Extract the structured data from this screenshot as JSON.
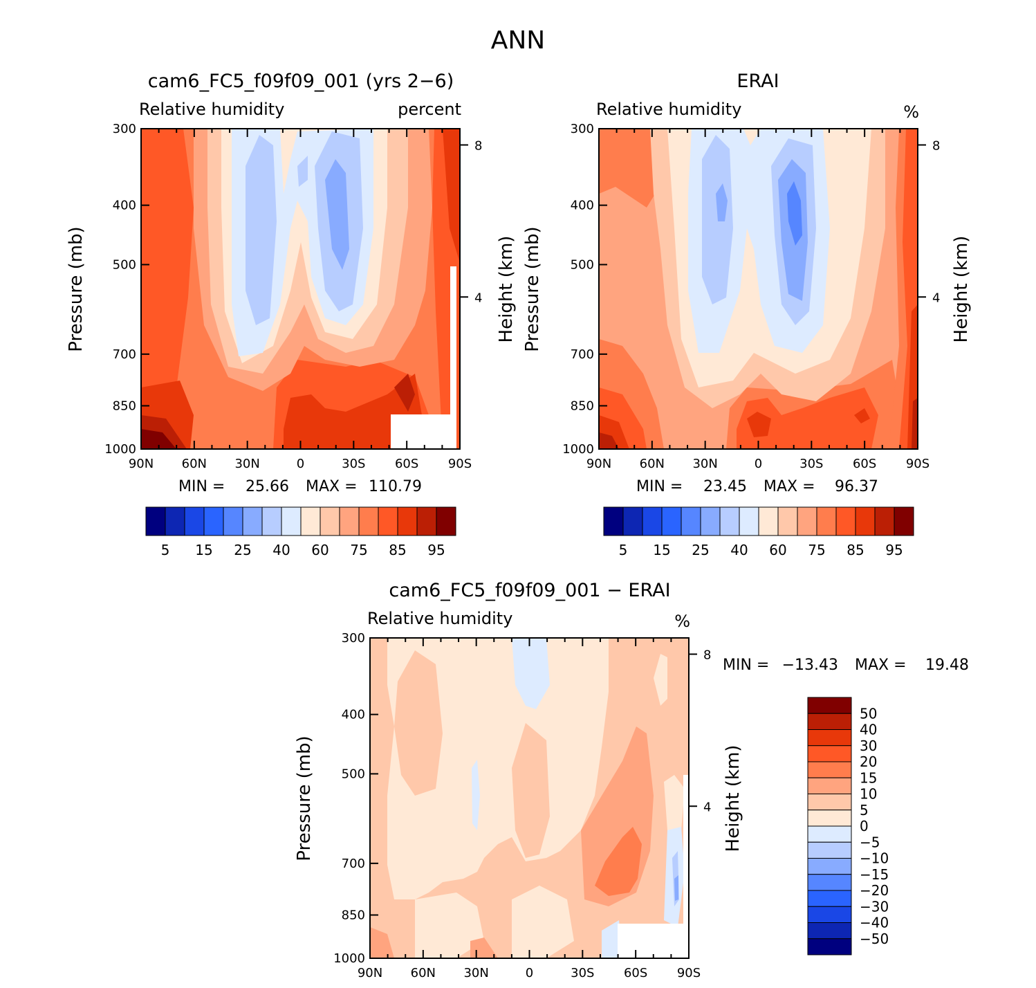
{
  "figure": {
    "title": "ANN"
  },
  "chart_data": [
    {
      "type": "heatmap",
      "title": "cam6_FC5_f09f09_001 (yrs 2−6)",
      "left_label": "Relative humidity",
      "right_label": "percent",
      "ylabel": "Pressure (mb)",
      "ylabel_right": "Height (km)",
      "x_ticks": [
        "90N",
        "60N",
        "30N",
        "0",
        "30S",
        "60S",
        "90S"
      ],
      "y_ticks": [
        "300",
        "400",
        "500",
        "700",
        "850",
        "1000"
      ],
      "y_ticks_right": [
        "8",
        "4"
      ],
      "ylim": [
        1000,
        300
      ],
      "y_scale": "log",
      "stats": {
        "min_label": "MIN =",
        "min": "25.66",
        "max_label": "MAX =",
        "max": "110.79"
      },
      "colorbar": {
        "orientation": "horizontal",
        "levels": [
          "5",
          "15",
          "25",
          "40",
          "60",
          "75",
          "85",
          "95"
        ],
        "colors": [
          "#00007f",
          "#0d26b3",
          "#1a47e6",
          "#2a64ff",
          "#5686ff",
          "#88abff",
          "#b7cdff",
          "#ddebff",
          "#ffe9d6",
          "#ffc8aa",
          "#ffa47f",
          "#ff7d4d",
          "#ff5826",
          "#e8380a",
          "#bb1f05",
          "#800000"
        ]
      },
      "features": [
        {
          "description": "dry region 30N–0 upper levels",
          "value_range": "40–60"
        },
        {
          "description": "dry region 0–30S upper levels",
          "value_range": "25–40"
        },
        {
          "description": "moist boundary layer high latitudes",
          "value_range": "85–95"
        }
      ]
    },
    {
      "type": "heatmap",
      "title": "ERAI",
      "left_label": "Relative humidity",
      "right_label": "%",
      "ylabel": "Pressure (mb)",
      "ylabel_right": "Height (km)",
      "x_ticks": [
        "90N",
        "60N",
        "30N",
        "0",
        "30S",
        "60S",
        "90S"
      ],
      "y_ticks": [
        "300",
        "400",
        "500",
        "700",
        "850",
        "1000"
      ],
      "y_ticks_right": [
        "8",
        "4"
      ],
      "ylim": [
        1000,
        300
      ],
      "y_scale": "log",
      "stats": {
        "min_label": "MIN =",
        "min": "23.45",
        "max_label": "MAX =",
        "max": "96.37"
      },
      "colorbar": {
        "orientation": "horizontal",
        "levels": [
          "5",
          "15",
          "25",
          "40",
          "60",
          "75",
          "85",
          "95"
        ],
        "colors": [
          "#00007f",
          "#0d26b3",
          "#1a47e6",
          "#2a64ff",
          "#5686ff",
          "#88abff",
          "#b7cdff",
          "#ddebff",
          "#ffe9d6",
          "#ffc8aa",
          "#ffa47f",
          "#ff7d4d",
          "#ff5826",
          "#e8380a",
          "#bb1f05",
          "#800000"
        ]
      }
    },
    {
      "type": "heatmap",
      "title": "cam6_FC5_f09f09_001 − ERAI",
      "left_label": "Relative humidity",
      "right_label": "%",
      "ylabel": "Pressure (mb)",
      "ylabel_right": "Height (km)",
      "x_ticks": [
        "90N",
        "60N",
        "30N",
        "0",
        "30S",
        "60S",
        "90S"
      ],
      "y_ticks": [
        "300",
        "400",
        "500",
        "700",
        "850",
        "1000"
      ],
      "y_ticks_right": [
        "8",
        "4"
      ],
      "ylim": [
        1000,
        300
      ],
      "y_scale": "log",
      "stats": {
        "min_label": "MIN =",
        "min": "−13.43",
        "max_label": "MAX =",
        "max": "19.48"
      },
      "colorbar": {
        "orientation": "vertical",
        "levels": [
          "50",
          "40",
          "30",
          "20",
          "15",
          "10",
          "5",
          "0",
          "−5",
          "−10",
          "−15",
          "−20",
          "−30",
          "−40",
          "−50"
        ],
        "colors": [
          "#800000",
          "#bb1f05",
          "#e8380a",
          "#ff5826",
          "#ff7d4d",
          "#ffa47f",
          "#ffc8aa",
          "#ffe9d6",
          "#ddebff",
          "#b7cdff",
          "#88abff",
          "#5686ff",
          "#2a64ff",
          "#1a47e6",
          "#0d26b3",
          "#00007f"
        ]
      }
    }
  ]
}
